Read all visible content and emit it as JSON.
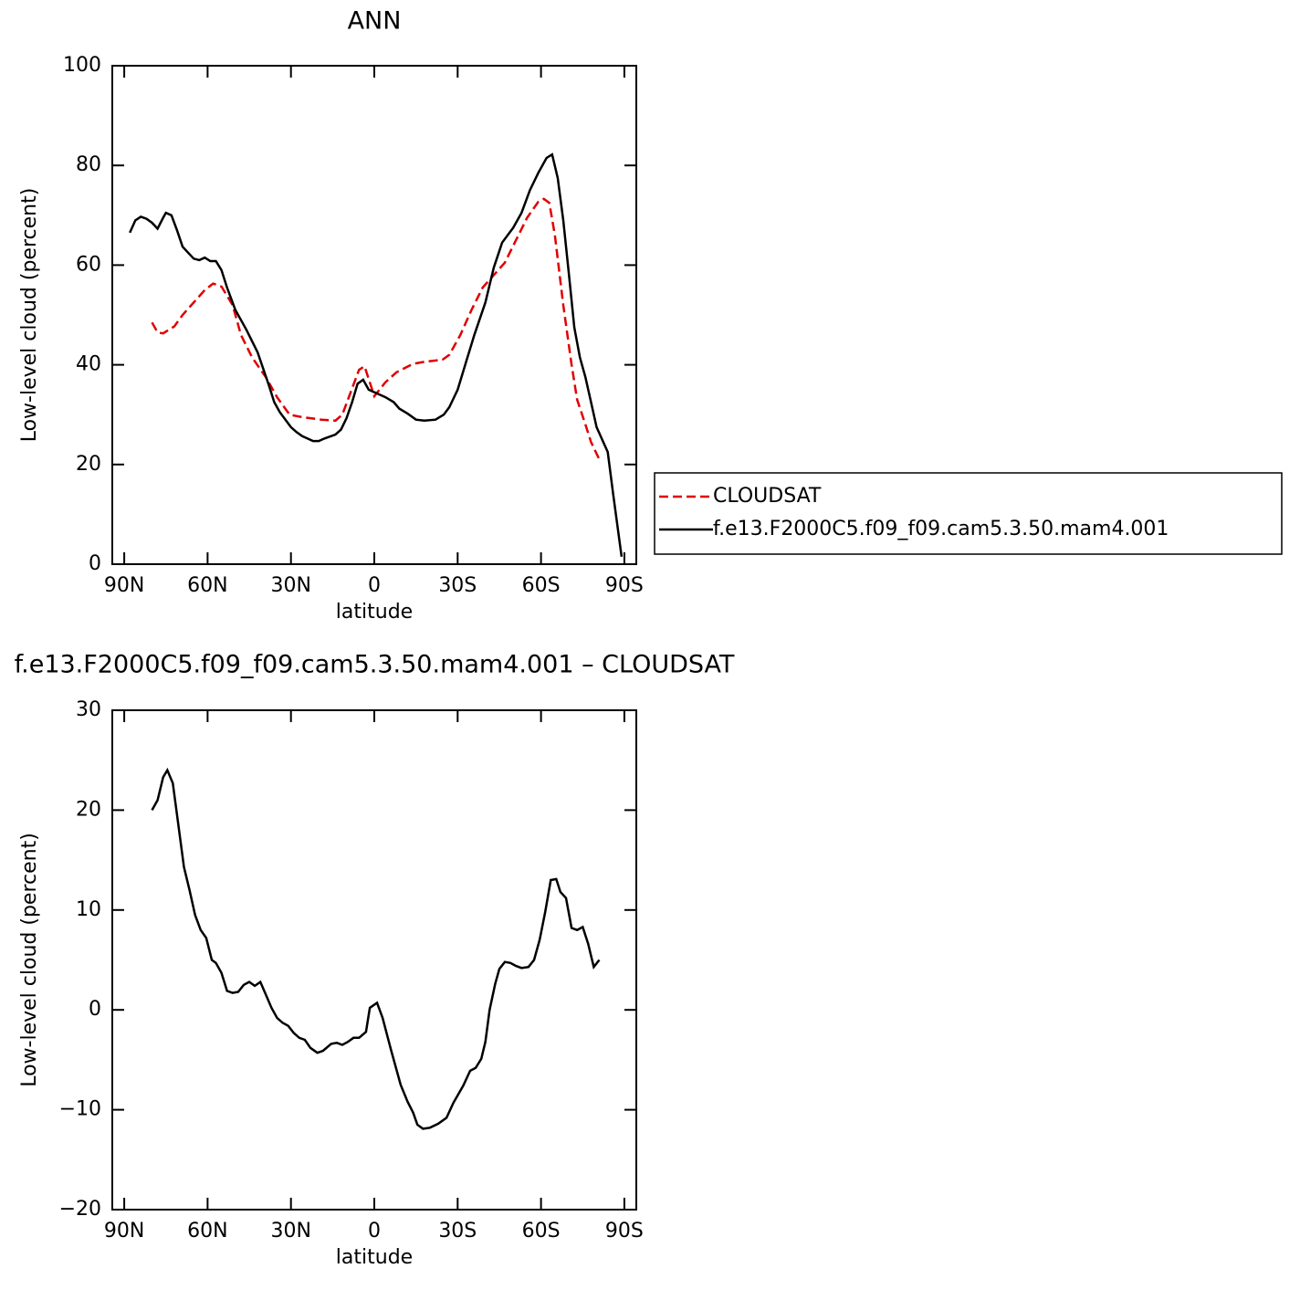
{
  "chart_data": [
    {
      "type": "line",
      "title": "ANN",
      "xlabel": "latitude",
      "ylabel": "Low-level cloud (percent)",
      "xlim": [
        94.3,
        -94.3
      ],
      "xticks": [
        {
          "value": 90,
          "label": "90N"
        },
        {
          "value": 60,
          "label": "60N"
        },
        {
          "value": 30,
          "label": "30N"
        },
        0,
        {
          "value": -30,
          "label": "30S"
        },
        {
          "value": -60,
          "label": "60S"
        },
        {
          "value": -90,
          "label": "90S"
        }
      ],
      "ylim": [
        0,
        100
      ],
      "yticks": [
        0,
        20,
        40,
        60,
        80,
        100
      ],
      "legend": "right",
      "series": [
        {
          "name": "CLOUDSAT",
          "color": "#e00000",
          "dash": true,
          "x": [
            80,
            78,
            76,
            72,
            69,
            65,
            61,
            58,
            55,
            51,
            48,
            44,
            39,
            35,
            30.5,
            26,
            19,
            14,
            11.5,
            7.5,
            5.5,
            3.5,
            0,
            -4,
            -8,
            -14,
            -18,
            -24.5,
            -27,
            -31,
            -35,
            -39,
            -43,
            -47,
            -51,
            -55,
            -59,
            -61,
            -63,
            -65,
            -68,
            -71,
            -73,
            -76,
            -78,
            -81
          ],
          "values": [
            48.5,
            46.5,
            46.3,
            47.7,
            50,
            52.5,
            55,
            56.3,
            55.7,
            52,
            46,
            41.5,
            37.5,
            33.5,
            30,
            29.5,
            29,
            28.8,
            30,
            36,
            39,
            39.7,
            33.7,
            36.5,
            38.5,
            40.2,
            40.6,
            41,
            42,
            46,
            51,
            55.5,
            58,
            60.5,
            65,
            69.5,
            72.7,
            73.3,
            72.5,
            66,
            52,
            40,
            33,
            28,
            24.5,
            21
          ]
        },
        {
          "name": "f.e13.F2000C5.f09_f09.cam5.3.50.mam4.001",
          "color": "#000000",
          "dash": false,
          "x": [
            88,
            86,
            84,
            82,
            80,
            78,
            76,
            75,
            73,
            71,
            69,
            67,
            65,
            63,
            61,
            59,
            57,
            55,
            53,
            50,
            46,
            42,
            38,
            36,
            34,
            30,
            28,
            26,
            22,
            20,
            18,
            14,
            12,
            10,
            8,
            6,
            4,
            2,
            0,
            -4,
            -7,
            -9,
            -12,
            -15,
            -18,
            -22,
            -25,
            -27,
            -30,
            -33,
            -36,
            -40,
            -43,
            -46,
            -50,
            -53,
            -56,
            -59,
            -62,
            -64,
            -66,
            -68,
            -70,
            -72,
            -74,
            -76,
            -78,
            -80,
            -82,
            -84,
            -86,
            -89
          ],
          "values": [
            66.5,
            69,
            69.7,
            69.3,
            68.5,
            67.3,
            69.5,
            70.5,
            70,
            67,
            63.7,
            62.5,
            61.3,
            61,
            61.5,
            60.8,
            60.8,
            59,
            55.5,
            51,
            47,
            42.5,
            36,
            32.5,
            30.5,
            27.5,
            26.5,
            25.7,
            24.7,
            24.7,
            25.2,
            26,
            27,
            29.3,
            32.5,
            36.2,
            37,
            35,
            34.5,
            33.5,
            32.5,
            31.2,
            30.2,
            29,
            28.8,
            29,
            30,
            31.5,
            35,
            40.5,
            46,
            52.5,
            59.5,
            64.5,
            67.5,
            70.5,
            75,
            78.5,
            81.5,
            82.2,
            77.5,
            69,
            58.5,
            47.5,
            41.5,
            37.5,
            32.5,
            27.5,
            25,
            22.5,
            14,
            1.5
          ]
        }
      ]
    },
    {
      "type": "line",
      "title": "f.e13.F2000C5.f09_f09.cam5.3.50.mam4.001 – CLOUDSAT",
      "xlabel": "latitude",
      "ylabel": "Low-level cloud (percent)",
      "xlim": [
        94.3,
        -94.3
      ],
      "xticks": [
        {
          "value": 90,
          "label": "90N"
        },
        {
          "value": 60,
          "label": "60N"
        },
        {
          "value": 30,
          "label": "30N"
        },
        0,
        {
          "value": -30,
          "label": "30S"
        },
        {
          "value": -60,
          "label": "60S"
        },
        {
          "value": -90,
          "label": "90S"
        }
      ],
      "ylim": [
        -20,
        30
      ],
      "yticks": [
        {
          "value": -20,
          "label": "−20"
        },
        {
          "value": -10,
          "label": "−10"
        },
        0,
        10,
        20,
        30
      ],
      "series": [
        {
          "color": "#000000",
          "dash": false,
          "x": [
            80,
            78,
            76,
            74.5,
            72.5,
            70.5,
            68.5,
            66.5,
            64.5,
            62.5,
            60.5,
            58.5,
            57,
            55,
            53,
            51,
            49,
            47,
            45,
            43,
            41,
            39,
            37,
            35,
            33,
            31,
            29,
            27,
            25,
            23,
            20.5,
            18.5,
            15.5,
            13.5,
            11.5,
            9.5,
            7.5,
            5.5,
            3,
            1.6,
            -1,
            -3,
            -6,
            -9.5,
            -12,
            -14,
            -15.5,
            -17.5,
            -20,
            -23,
            -26,
            -28.5,
            -32,
            -34.5,
            -36.5,
            -38.5,
            -40,
            -41.5,
            -43.5,
            -45,
            -47,
            -49,
            -51,
            -53,
            -55.5,
            -57.5,
            -59.5,
            -61.5,
            -63.5,
            -65.5,
            -67,
            -69,
            -71,
            -73,
            -75,
            -77,
            -79,
            -81
          ],
          "values": [
            20,
            21,
            23.3,
            24,
            22.7,
            18.5,
            14.3,
            12,
            9.5,
            8,
            7.2,
            5,
            4.7,
            3.7,
            1.9,
            1.7,
            1.8,
            2.5,
            2.8,
            2.4,
            2.8,
            1.5,
            0.2,
            -0.8,
            -1.3,
            -1.6,
            -2.3,
            -2.8,
            -3.0,
            -3.8,
            -4.3,
            -4.1,
            -3.4,
            -3.3,
            -3.5,
            -3.2,
            -2.8,
            -2.8,
            -2.2,
            0.2,
            0.7,
            -0.8,
            -4,
            -7.5,
            -9.2,
            -10.3,
            -11.5,
            -11.9,
            -11.8,
            -11.4,
            -10.8,
            -9.3,
            -7.6,
            -6.1,
            -5.8,
            -4.9,
            -3.2,
            0,
            2.6,
            4.1,
            4.8,
            4.7,
            4.4,
            4.2,
            4.3,
            5,
            7,
            9.8,
            13,
            13.1,
            11.8,
            11.2,
            8.2,
            8,
            8.3,
            6.6,
            4.3,
            5
          ]
        }
      ]
    }
  ]
}
